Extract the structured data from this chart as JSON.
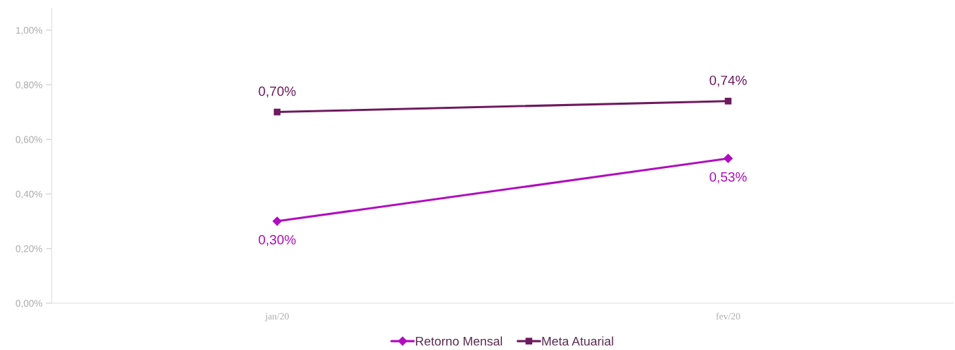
{
  "chart_data": {
    "type": "line",
    "categories": [
      "jan/20",
      "fev/20"
    ],
    "series": [
      {
        "name": "Retorno Mensal",
        "color": "#b00cbe",
        "marker": "diamond",
        "values": [
          0.3,
          0.53
        ],
        "value_labels": [
          "0,30%",
          "0,53%"
        ]
      },
      {
        "name": "Meta Atuarial",
        "color": "#6e1a5e",
        "marker": "square",
        "values": [
          0.7,
          0.74
        ],
        "value_labels": [
          "0,70%",
          "0,74%"
        ]
      }
    ],
    "ylim": [
      0,
      1.08
    ],
    "yticks": [
      {
        "value": 0,
        "label": "0,00%"
      },
      {
        "value": 0.2,
        "label": "0,20%"
      },
      {
        "value": 0.4,
        "label": "0,40%"
      },
      {
        "value": 0.6,
        "label": "0,60%"
      },
      {
        "value": 0.8,
        "label": "0,80%"
      },
      {
        "value": 1.0,
        "label": "1,00%"
      }
    ],
    "grid": false,
    "legend": "bottom",
    "line_style": "solid"
  }
}
